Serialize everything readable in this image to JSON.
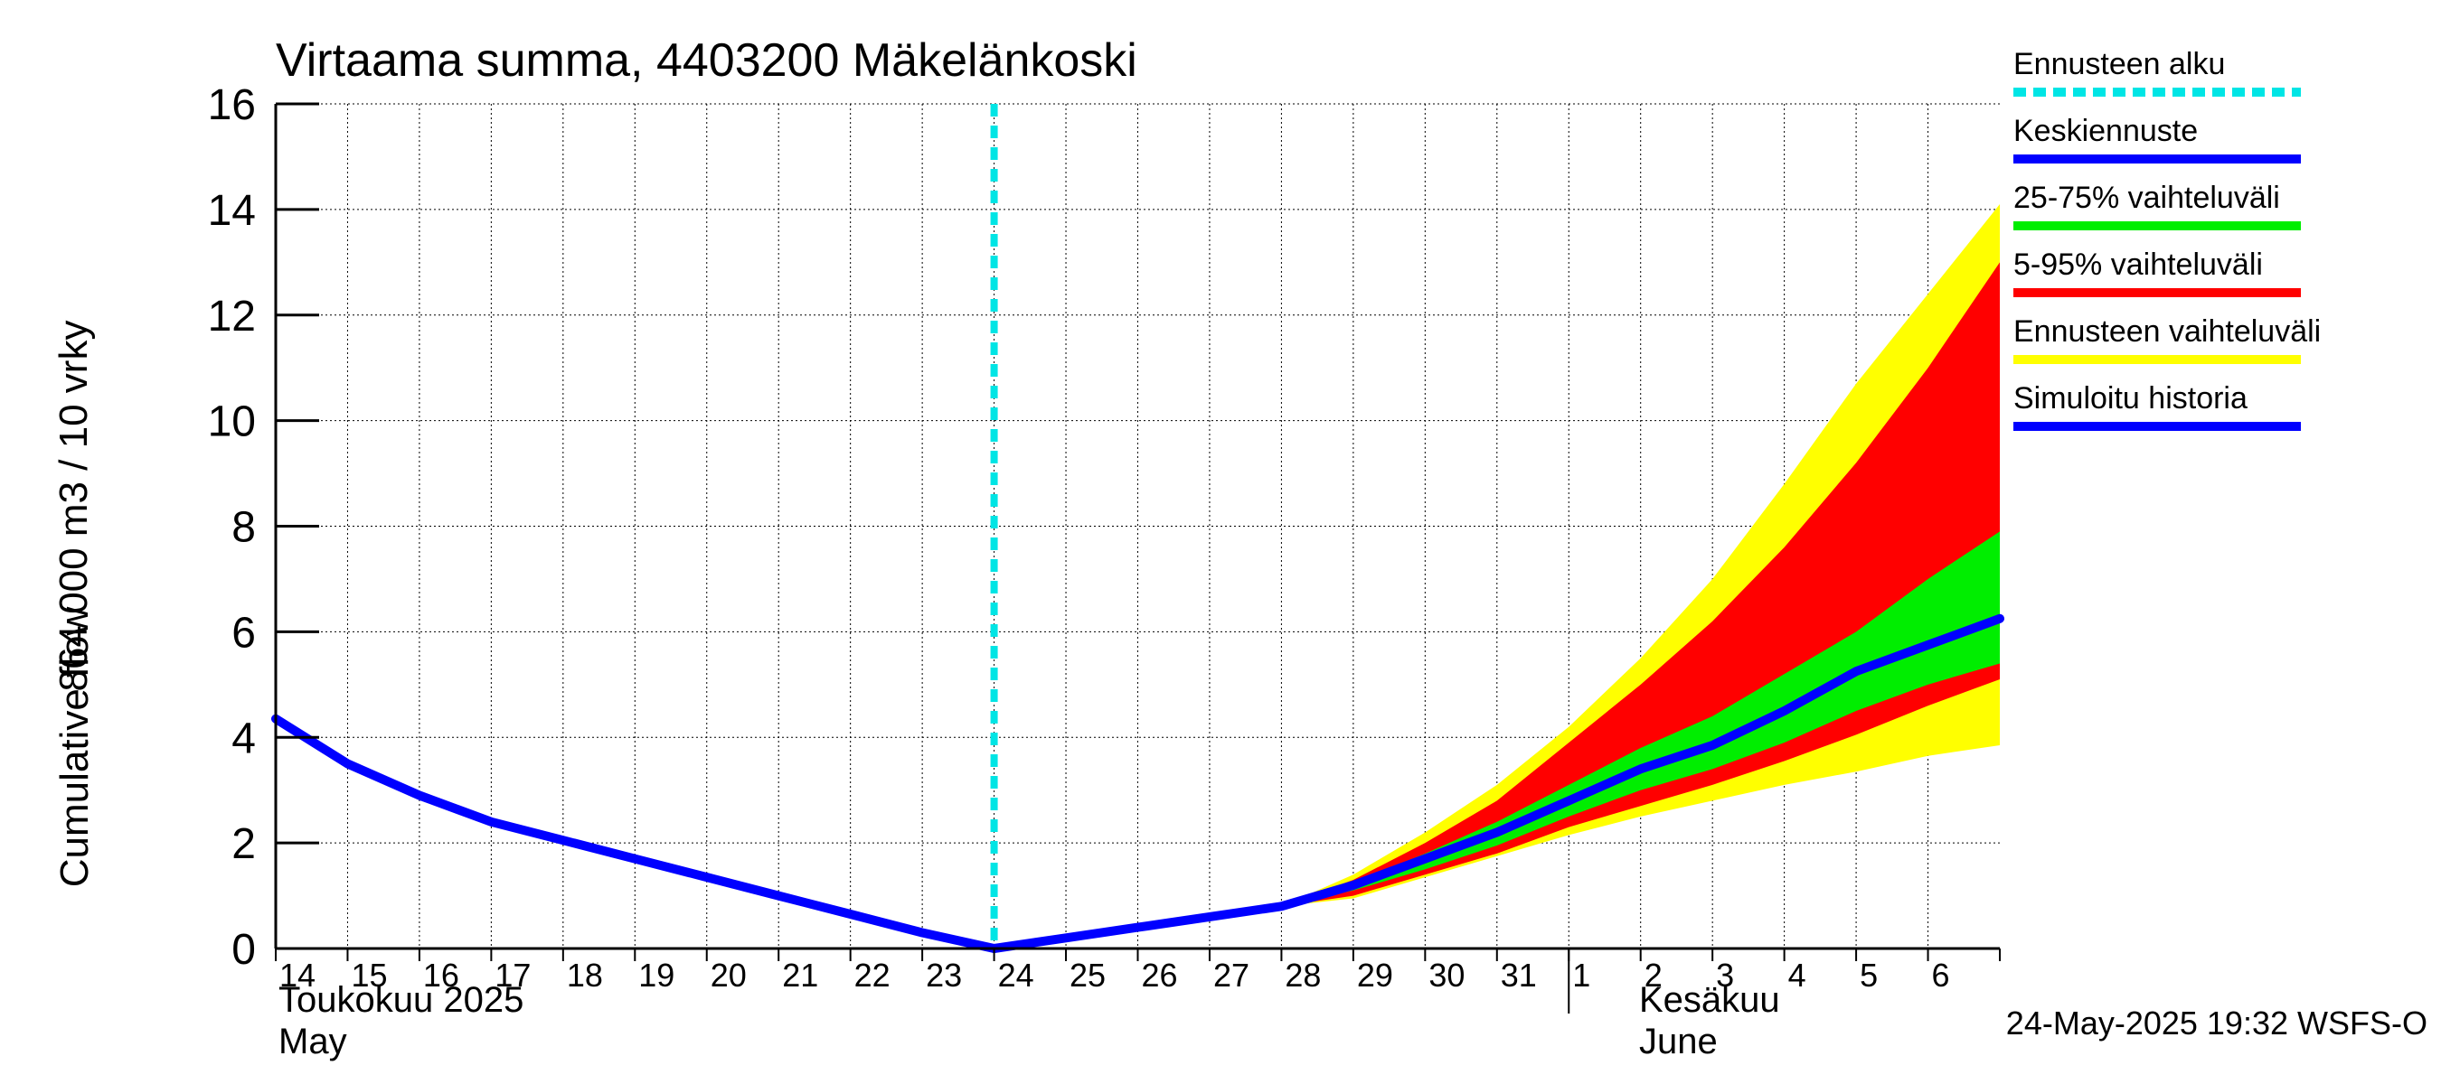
{
  "chart_data": {
    "type": "area",
    "title": "Virtaama summa, 4403200 Mäkelänkoski",
    "ylabel_line1": "864 000 m3 / 10 vrky",
    "ylabel_line2": "Cumulative flow",
    "ylim": [
      0,
      16
    ],
    "y_ticks": [
      0,
      2,
      4,
      6,
      8,
      10,
      12,
      14,
      16
    ],
    "xlim": [
      "2025-05-14",
      "2025-06-07"
    ],
    "x_tick_labels": [
      "14",
      "15",
      "16",
      "17",
      "18",
      "19",
      "20",
      "21",
      "22",
      "23",
      "24",
      "25",
      "26",
      "27",
      "28",
      "29",
      "30",
      "31",
      "1",
      "2",
      "3",
      "4",
      "5",
      "6"
    ],
    "month_labels": {
      "may_fi": "Toukokuu  2025",
      "may_en": "May",
      "june_fi": "Kesäkuu",
      "june_en": "June"
    },
    "grid": true,
    "legend_position": "right",
    "forecast_start": "2025-05-24",
    "legend": [
      {
        "label": "Ennusteen alku",
        "color": "#00e5e5",
        "style": "dashed"
      },
      {
        "label": "Keskiennuste",
        "color": "#0000ff",
        "style": "solid"
      },
      {
        "label": "25-75% vaihteluväli",
        "color": "#00ee00",
        "style": "solid"
      },
      {
        "label": "5-95% vaihteluväli",
        "color": "#ff0000",
        "style": "solid"
      },
      {
        "label": "Ennusteen vaihteluväli",
        "color": "#ffff00",
        "style": "solid"
      },
      {
        "label": "Simuloitu historia",
        "color": "#0000ff",
        "style": "solid"
      }
    ],
    "history": {
      "name": "Simuloitu historia",
      "x": [
        "2025-05-14",
        "2025-05-15",
        "2025-05-16",
        "2025-05-17",
        "2025-05-18",
        "2025-05-19",
        "2025-05-20",
        "2025-05-21",
        "2025-05-22",
        "2025-05-23",
        "2025-05-24"
      ],
      "y": [
        4.35,
        3.5,
        2.9,
        2.4,
        2.05,
        1.7,
        1.35,
        1.0,
        0.65,
        0.3,
        0.0
      ]
    },
    "forecast_x": [
      "2025-05-24",
      "2025-05-25",
      "2025-05-26",
      "2025-05-27",
      "2025-05-28",
      "2025-05-29",
      "2025-05-30",
      "2025-05-31",
      "2025-06-01",
      "2025-06-02",
      "2025-06-03",
      "2025-06-04",
      "2025-06-05",
      "2025-06-06",
      "2025-06-07"
    ],
    "median": [
      0.0,
      0.2,
      0.4,
      0.6,
      0.8,
      1.2,
      1.7,
      2.2,
      2.8,
      3.4,
      3.85,
      4.5,
      5.25,
      5.75,
      6.25
    ],
    "p25": [
      0.0,
      0.2,
      0.4,
      0.6,
      0.8,
      1.1,
      1.5,
      1.95,
      2.5,
      3.0,
      3.4,
      3.9,
      4.5,
      5.0,
      5.4
    ],
    "p75": [
      0.0,
      0.2,
      0.4,
      0.6,
      0.8,
      1.25,
      1.8,
      2.4,
      3.1,
      3.8,
      4.4,
      5.2,
      6.0,
      7.0,
      7.9
    ],
    "p5": [
      0.0,
      0.2,
      0.4,
      0.6,
      0.8,
      1.0,
      1.4,
      1.8,
      2.3,
      2.7,
      3.1,
      3.55,
      4.05,
      4.6,
      5.1
    ],
    "p95": [
      0.0,
      0.2,
      0.4,
      0.6,
      0.8,
      1.3,
      2.0,
      2.8,
      3.9,
      5.0,
      6.2,
      7.6,
      9.2,
      11.0,
      13.0
    ],
    "min": [
      0.0,
      0.2,
      0.4,
      0.6,
      0.8,
      0.95,
      1.35,
      1.75,
      2.15,
      2.5,
      2.8,
      3.1,
      3.35,
      3.65,
      3.85
    ],
    "max": [
      0.0,
      0.2,
      0.4,
      0.6,
      0.8,
      1.4,
      2.2,
      3.1,
      4.2,
      5.5,
      7.0,
      8.8,
      10.7,
      12.4,
      14.1
    ]
  },
  "footer": {
    "timestamp": "24-May-2025 19:32 WSFS-O"
  }
}
